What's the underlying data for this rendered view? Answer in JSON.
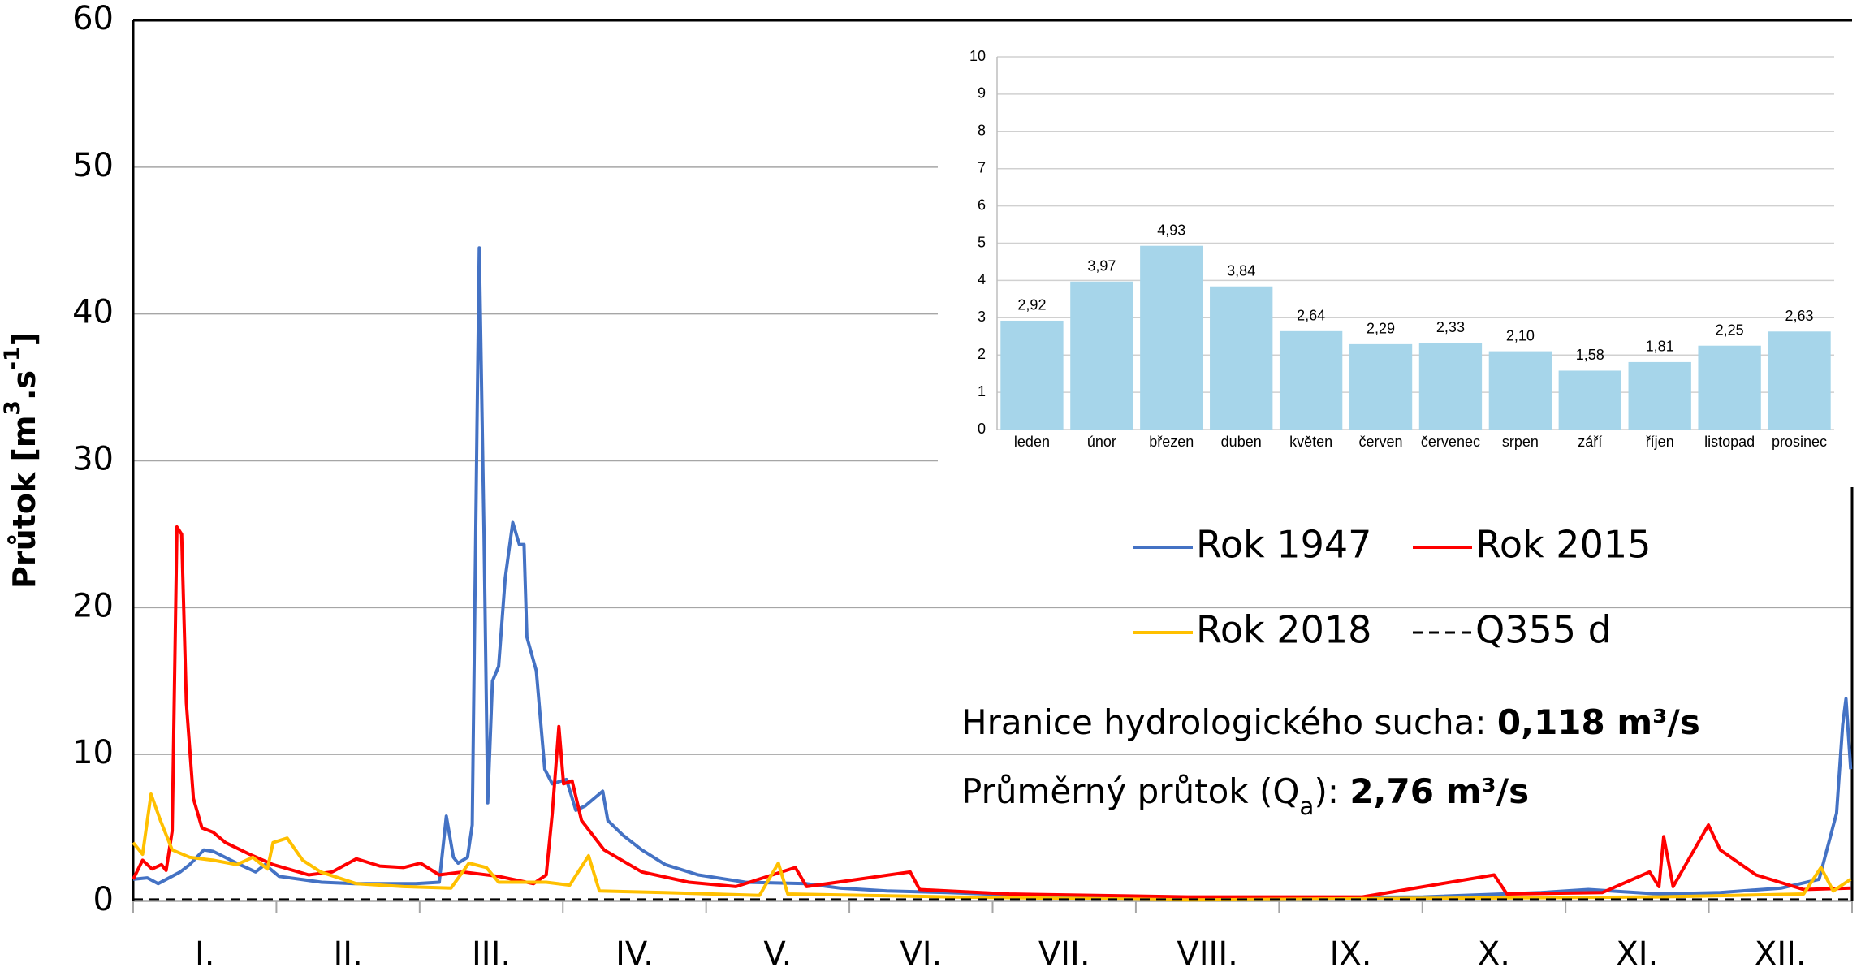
{
  "chart_data": [
    {
      "type": "line",
      "ylabel_parts": [
        {
          "text": "Průtok  [m"
        },
        {
          "text": "3",
          "style": "sup"
        },
        {
          "text": ".s"
        },
        {
          "text": "-1",
          "style": "sup"
        },
        {
          "text": "]"
        }
      ],
      "categories": [
        "I.",
        "II.",
        "III.",
        "IV.",
        "V.",
        "VI.",
        "VII.",
        "VIII.",
        "IX.",
        "X.",
        "XI.",
        "XII."
      ],
      "xlim": [
        0,
        365
      ],
      "ylim": [
        0,
        60
      ],
      "yticks": [
        0,
        10,
        20,
        30,
        40,
        50,
        60
      ],
      "grid": true,
      "series": [
        {
          "name": "Rok 1947",
          "color": "#4472c4",
          "dash": false,
          "x": [
            0,
            3,
            5.3,
            10,
            12,
            15,
            17,
            22,
            26,
            28,
            31,
            40,
            47,
            60,
            65,
            66.5,
            68,
            69,
            71,
            72,
            73,
            73.5,
            74.5,
            75.3,
            76.3,
            77.6,
            79,
            80.6,
            82,
            83,
            83.6,
            85.6,
            87.4,
            89,
            92,
            94,
            96,
            99.7,
            100.8,
            104,
            108,
            113,
            120,
            130,
            143,
            150,
            160,
            173,
            198,
            224,
            249,
            274,
            299,
            309,
            324,
            337,
            350,
            358,
            361.7,
            363,
            363.7,
            364.7
          ],
          "values": [
            1.5,
            1.6,
            1.2,
            2,
            2.5,
            3.5,
            3.4,
            2.6,
            2,
            2.5,
            1.7,
            1.3,
            1.2,
            1.2,
            1.3,
            5.8,
            3,
            2.6,
            3,
            5.2,
            32,
            44.5,
            25,
            6.7,
            15,
            16,
            22,
            25.8,
            24.3,
            24.3,
            18,
            15.7,
            9,
            8,
            8.3,
            6.2,
            6.5,
            7.5,
            5.5,
            4.5,
            3.5,
            2.5,
            1.8,
            1.3,
            1.2,
            0.9,
            0.7,
            0.6,
            0.3,
            0.2,
            0.25,
            0.3,
            0.6,
            0.8,
            0.5,
            0.6,
            0.9,
            1.5,
            6,
            12,
            13.8,
            9
          ]
        },
        {
          "name": "Rok 2015",
          "color": "#ff0000",
          "dash": false,
          "x": [
            0,
            2,
            4,
            6,
            7,
            8.3,
            9.3,
            10.3,
            11.3,
            12.8,
            14.6,
            17,
            19.6,
            24.7,
            29.7,
            37.3,
            42.3,
            47.4,
            52.4,
            57.4,
            61,
            65,
            70,
            77.6,
            85,
            87.7,
            89,
            90.4,
            91.4,
            93.2,
            95.2,
            100,
            108,
            118,
            128,
            140.6,
            143,
            165,
            167,
            186,
            224,
            261,
            289,
            291.7,
            312,
            322,
            324,
            325,
            327,
            334.5,
            337,
            344.6,
            354.7,
            364.7
          ],
          "values": [
            1.5,
            2.8,
            2.2,
            2.5,
            2.1,
            4.8,
            25.5,
            25,
            13.5,
            7,
            5,
            4.7,
            4,
            3.2,
            2.5,
            1.8,
            2,
            2.9,
            2.4,
            2.3,
            2.6,
            1.8,
            2,
            1.7,
            1.2,
            1.8,
            6,
            11.9,
            8,
            8.2,
            5.5,
            3.5,
            2,
            1.3,
            1,
            2.3,
            1,
            2,
            0.8,
            0.5,
            0.3,
            0.3,
            1.8,
            0.5,
            0.6,
            2,
            1,
            4.4,
            1,
            5.2,
            3.5,
            1.8,
            0.8,
            0.9
          ]
        },
        {
          "name": "Rok 2018",
          "color": "#ffc000",
          "dash": false,
          "x": [
            0,
            2,
            3.8,
            5.8,
            8.3,
            12,
            17,
            22,
            25.4,
            28.5,
            29.7,
            32.7,
            36,
            39.8,
            47.4,
            57.4,
            67.5,
            71.3,
            75,
            77.6,
            87.7,
            92.7,
            96.7,
            99,
            112.8,
            133,
            137,
            139,
            173,
            224,
            274,
            324,
            354.7,
            358.4,
            361,
            364.7
          ],
          "values": [
            4,
            3.2,
            7.3,
            5.5,
            3.5,
            3,
            2.8,
            2.5,
            3,
            2.2,
            4,
            4.3,
            2.8,
            2,
            1.2,
            1,
            0.9,
            2.6,
            2.3,
            1.3,
            1.3,
            1.1,
            3.1,
            0.7,
            0.6,
            0.4,
            2.6,
            0.5,
            0.3,
            0.1,
            0.2,
            0.3,
            0.5,
            2.3,
            0.7,
            1.5
          ]
        },
        {
          "name": "Q355 d",
          "color": "#000000",
          "dash": true,
          "x": [
            0,
            365
          ],
          "values": [
            0.118,
            0.118
          ]
        }
      ],
      "annotations": [
        [
          {
            "text": "Hranice hydrologického sucha: "
          },
          {
            "text": "0,118 m³/s",
            "style": "bold"
          }
        ],
        [
          {
            "text": "Průměrný průtok (Q"
          },
          {
            "text": "a",
            "style": "sub"
          },
          {
            "text": "): "
          },
          {
            "text": "2,76 m³/s",
            "style": "bold"
          }
        ]
      ]
    },
    {
      "type": "bar",
      "categories": [
        "leden",
        "únor",
        "březen",
        "duben",
        "květen",
        "červen",
        "červenec",
        "srpen",
        "září",
        "říjen",
        "listopad",
        "prosinec"
      ],
      "values": [
        2.92,
        3.97,
        4.93,
        3.84,
        2.64,
        2.29,
        2.33,
        2.1,
        1.58,
        1.81,
        2.25,
        2.63
      ],
      "value_labels": [
        "2,92",
        "3,97",
        "4,93",
        "3,84",
        "2,64",
        "2,29",
        "2,33",
        "2,10",
        "1,58",
        "1,81",
        "2,25",
        "2,63"
      ],
      "color": "#a6d5ea",
      "ylim": [
        0,
        10
      ],
      "yticks": [
        0,
        1,
        2,
        3,
        4,
        5,
        6,
        7,
        8,
        9,
        10
      ],
      "grid": true
    }
  ]
}
